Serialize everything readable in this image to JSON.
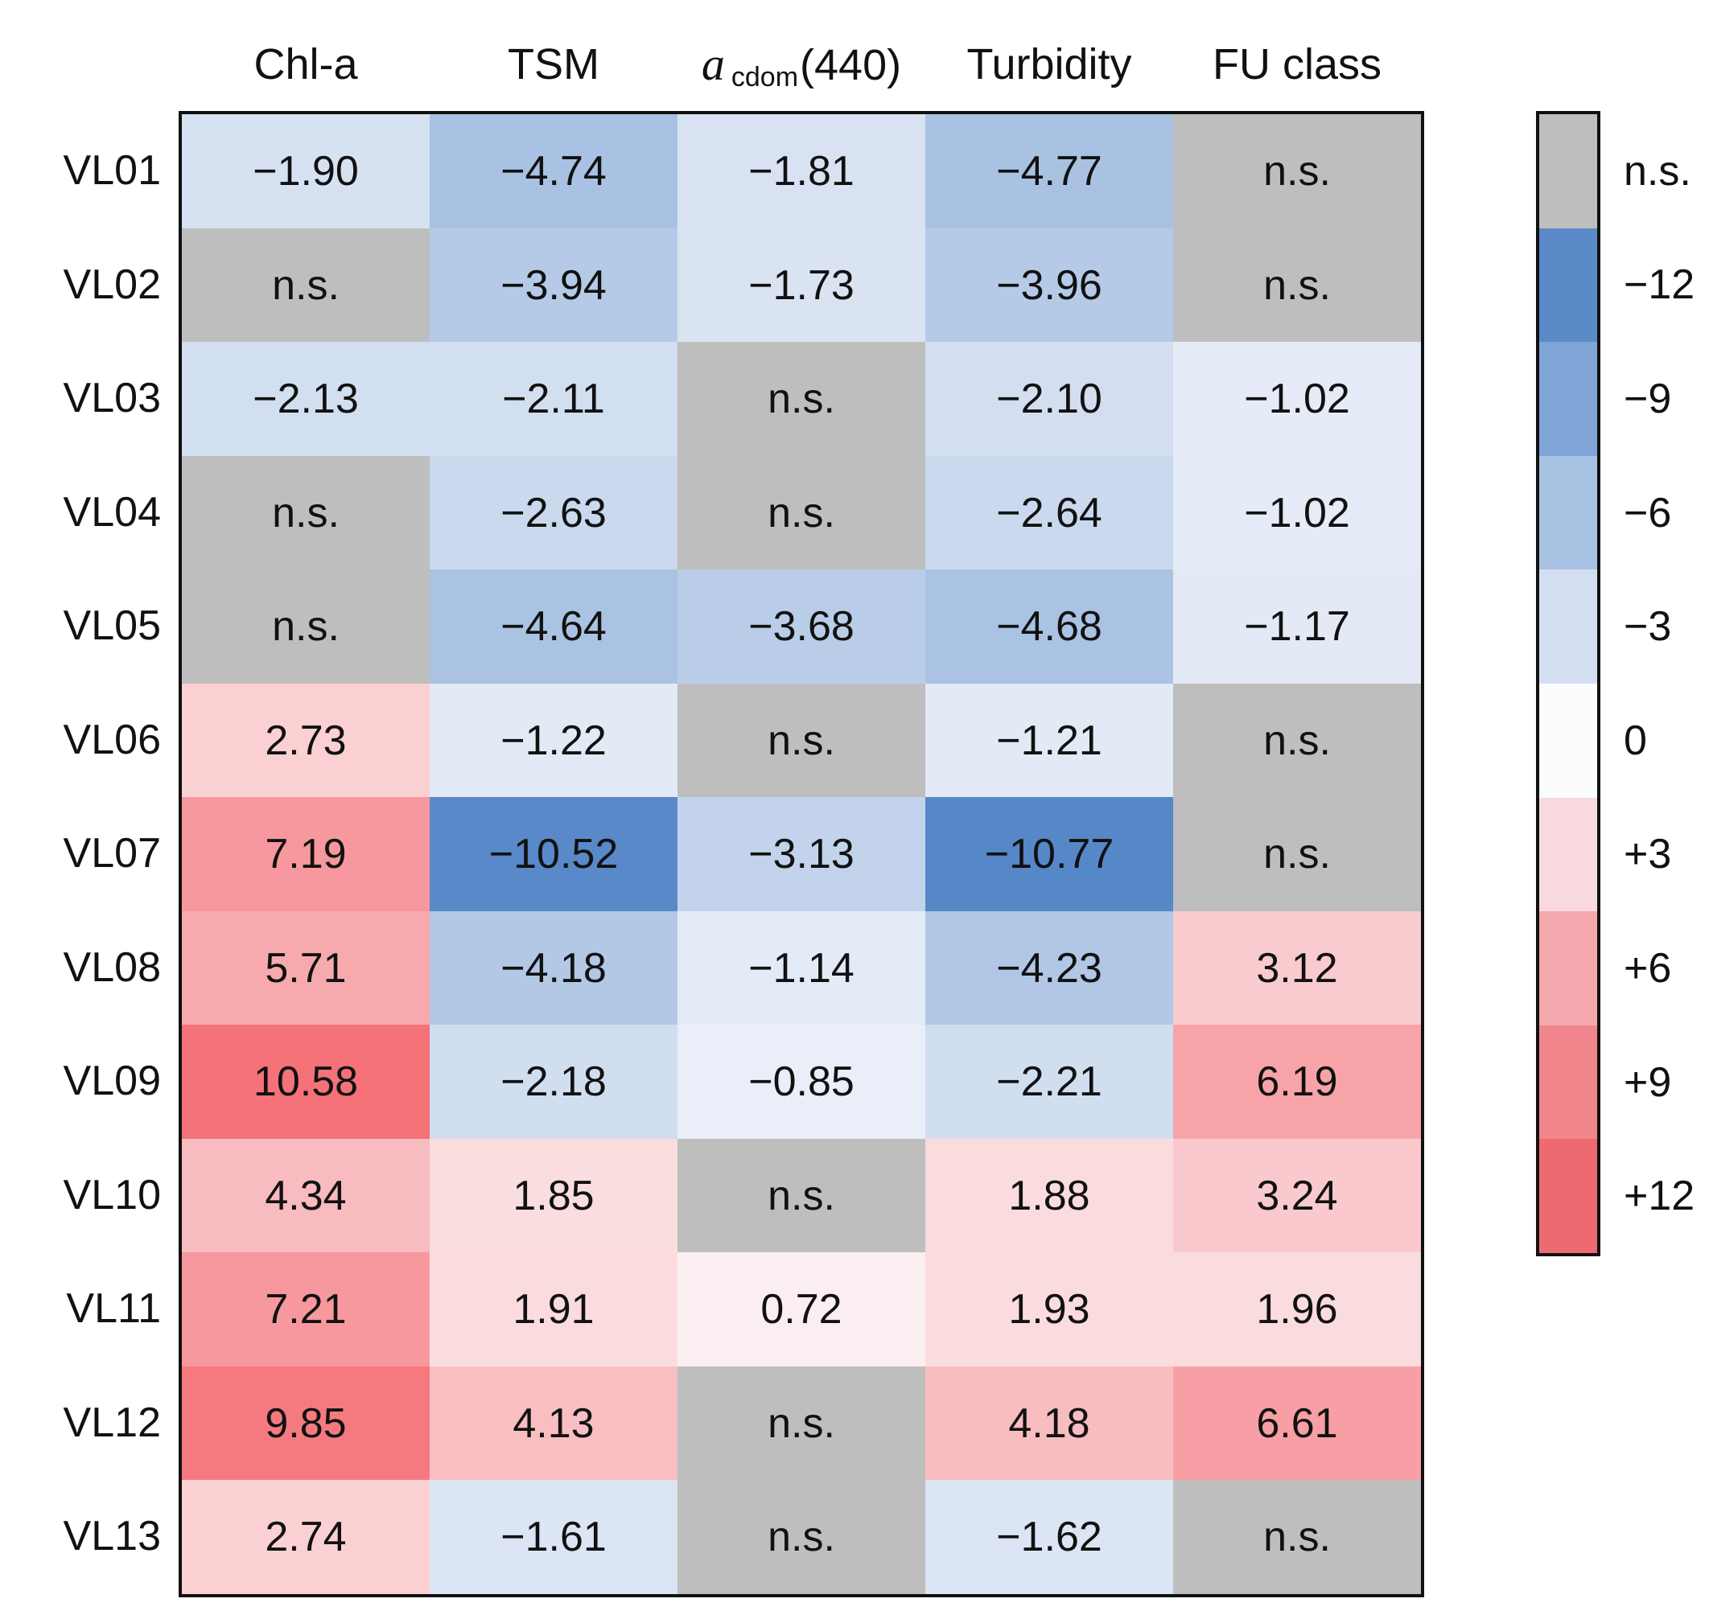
{
  "chart_data": {
    "type": "heatmap",
    "columns": [
      "Chl-a",
      "TSM",
      "acdom(440)",
      "Turbidity",
      "FU class"
    ],
    "column_headers": {
      "chl": "Chl-a",
      "tsm": "TSM",
      "acdom_main": "a",
      "acdom_sub": "cdom",
      "acdom_tail": "(440)",
      "turbidity": "Turbidity",
      "fu": "FU class"
    },
    "rows": [
      "VL01",
      "VL02",
      "VL03",
      "VL04",
      "VL05",
      "VL06",
      "VL07",
      "VL08",
      "VL09",
      "VL10",
      "VL11",
      "VL12",
      "VL13"
    ],
    "values": [
      [
        "−1.90",
        "−4.74",
        "−1.81",
        "−4.77",
        "n.s."
      ],
      [
        "n.s.",
        "−3.94",
        "−1.73",
        "−3.96",
        "n.s."
      ],
      [
        "−2.13",
        "−2.11",
        "n.s.",
        "−2.10",
        "−1.02"
      ],
      [
        "n.s.",
        "−2.63",
        "n.s.",
        "−2.64",
        "−1.02"
      ],
      [
        "n.s.",
        "−4.64",
        "−3.68",
        "−4.68",
        "−1.17"
      ],
      [
        "2.73",
        "−1.22",
        "n.s.",
        "−1.21",
        "n.s."
      ],
      [
        "7.19",
        "−10.52",
        "−3.13",
        "−10.77",
        "n.s."
      ],
      [
        "5.71",
        "−4.18",
        "−1.14",
        "−4.23",
        "3.12"
      ],
      [
        "10.58",
        "−2.18",
        "−0.85",
        "−2.21",
        "6.19"
      ],
      [
        "4.34",
        "1.85",
        "n.s.",
        "1.88",
        "3.24"
      ],
      [
        "7.21",
        "1.91",
        "0.72",
        "1.93",
        "1.96"
      ],
      [
        "9.85",
        "4.13",
        "n.s.",
        "4.18",
        "6.61"
      ],
      [
        "2.74",
        "−1.61",
        "n.s.",
        "−1.62",
        "n.s."
      ]
    ],
    "non_significant_label": "n.s.",
    "colorbar": {
      "labels": [
        "n.s.",
        "−12",
        "−9",
        "−6",
        "−3",
        "0",
        "+3",
        "+6",
        "+9",
        "+12"
      ],
      "colors": [
        "#bebebe",
        "#5a8ac8",
        "#7fa4d6",
        "#a8c2e4",
        "#d3dff0",
        "#fbfcfe",
        "#f8d9dd",
        "#f4a8ae",
        "#f1868d",
        "#ee6a70"
      ],
      "range": [
        -12,
        12
      ]
    },
    "colors": {
      "ns": "#bebebe",
      "neg_strong": [
        83,
        133,
        198
      ],
      "pos_strong": [
        244,
        109,
        115
      ],
      "neutral": [
        252,
        252,
        254
      ]
    }
  }
}
